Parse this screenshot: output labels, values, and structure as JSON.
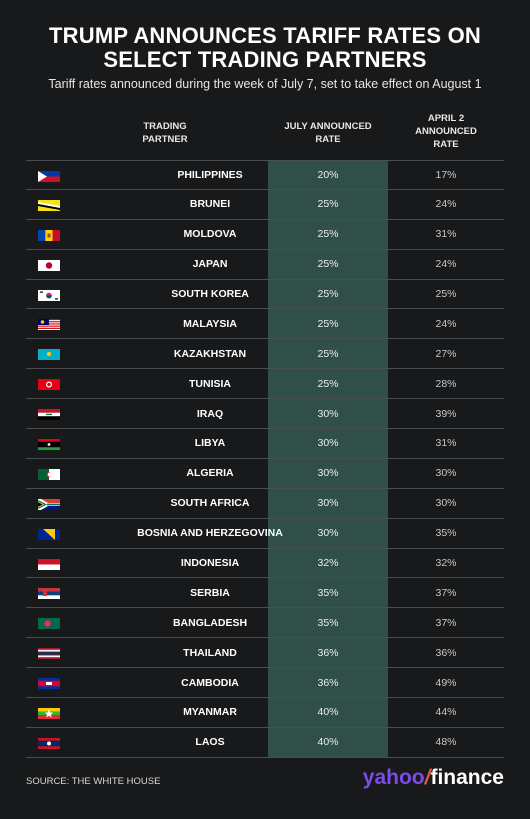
{
  "title_line1": "TRUMP ANNOUNCES TARIFF RATES ON",
  "title_line2": "SELECT TRADING PARTNERS",
  "subtitle": "Tariff rates announced during the week of July 7, set to take effect on August 1",
  "headers": {
    "partner": [
      "TRADING",
      "PARTNER"
    ],
    "july": [
      "JULY ANNOUNCED",
      "RATE"
    ],
    "april": [
      "APRIL 2",
      "ANNOUNCED",
      "RATE"
    ]
  },
  "chart_data": {
    "type": "table",
    "columns": [
      "TRADING PARTNER",
      "JULY ANNOUNCED RATE",
      "APRIL 2 ANNOUNCED RATE"
    ],
    "rows": [
      {
        "country": "PHILIPPINES",
        "july": "20%",
        "april": "17%"
      },
      {
        "country": "BRUNEI",
        "july": "25%",
        "april": "24%"
      },
      {
        "country": "MOLDOVA",
        "july": "25%",
        "april": "31%"
      },
      {
        "country": "JAPAN",
        "july": "25%",
        "april": "24%"
      },
      {
        "country": "SOUTH KOREA",
        "july": "25%",
        "april": "25%"
      },
      {
        "country": "MALAYSIA",
        "july": "25%",
        "april": "24%"
      },
      {
        "country": "KAZAKHSTAN",
        "july": "25%",
        "april": "27%"
      },
      {
        "country": "TUNISIA",
        "july": "25%",
        "april": "28%"
      },
      {
        "country": "IRAQ",
        "july": "30%",
        "april": "39%"
      },
      {
        "country": "LIBYA",
        "july": "30%",
        "april": "31%"
      },
      {
        "country": "ALGERIA",
        "july": "30%",
        "april": "30%"
      },
      {
        "country": "SOUTH AFRICA",
        "july": "30%",
        "april": "30%"
      },
      {
        "country": "BOSNIA AND HERZEGOVINA",
        "july": "30%",
        "april": "35%"
      },
      {
        "country": "INDONESIA",
        "july": "32%",
        "april": "32%"
      },
      {
        "country": "SERBIA",
        "july": "35%",
        "april": "37%"
      },
      {
        "country": "BANGLADESH",
        "july": "35%",
        "april": "37%"
      },
      {
        "country": "THAILAND",
        "july": "36%",
        "april": "36%"
      },
      {
        "country": "CAMBODIA",
        "july": "36%",
        "april": "49%"
      },
      {
        "country": "MYANMAR",
        "july": "40%",
        "april": "44%"
      },
      {
        "country": "LAOS",
        "july": "40%",
        "april": "48%"
      }
    ]
  },
  "colors": {
    "background": "#17191b",
    "highlight_column": "#2f4f48",
    "brand_purple": "#7b4ce8"
  },
  "footer": {
    "source": "SOURCE: THE WHITE HOUSE",
    "brand_a": "yahoo",
    "brand_b": "/",
    "brand_c": "finance"
  }
}
